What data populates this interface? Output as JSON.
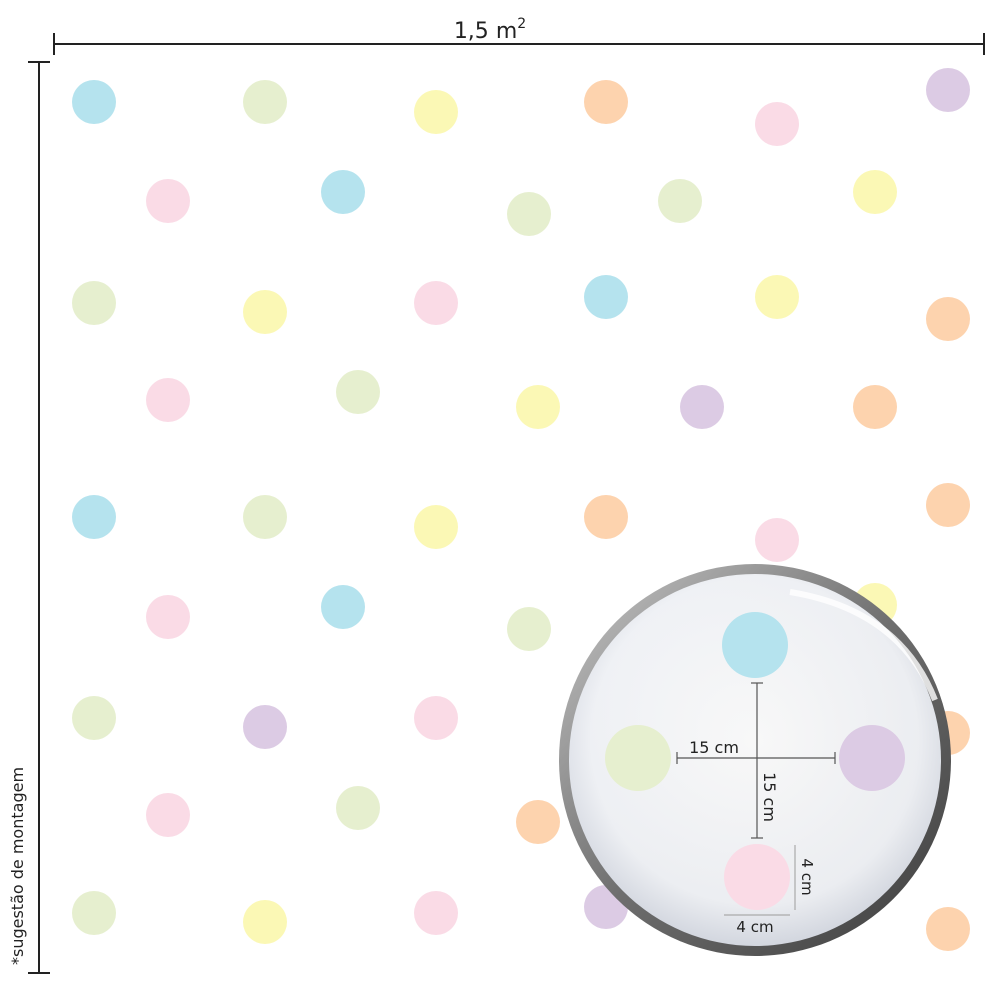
{
  "header": {
    "width_value": "1,5",
    "width_unit": "m",
    "width_exponent": "2"
  },
  "side_note": "*sugestão de montagem",
  "magnifier": {
    "horizontal_spacing": "15 cm",
    "vertical_spacing": "15 cm",
    "dot_height": "4 cm",
    "dot_width": "4 cm"
  }
}
